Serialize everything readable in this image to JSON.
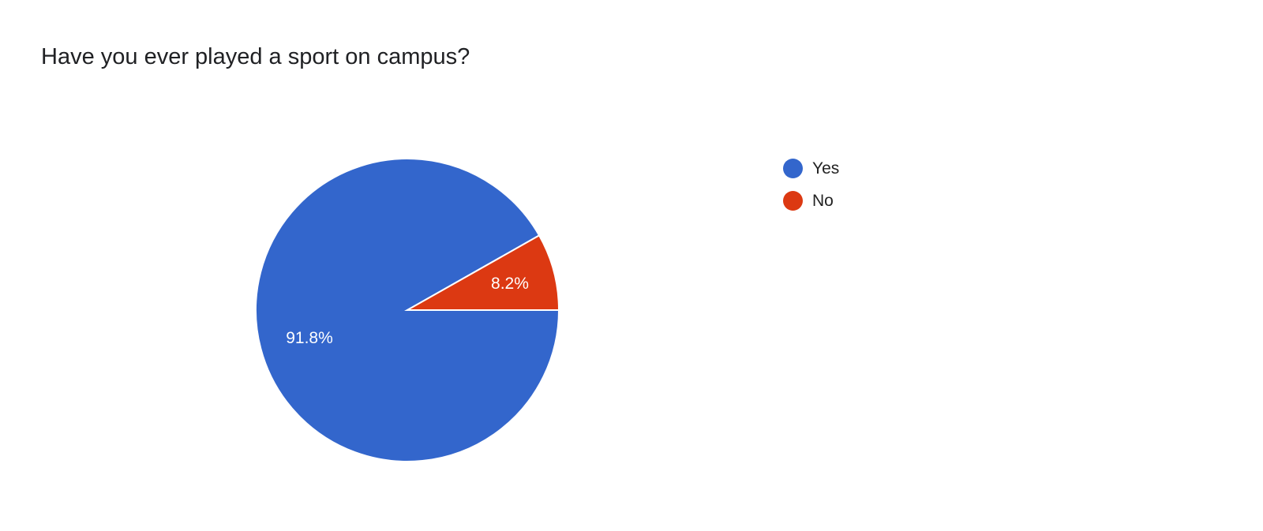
{
  "chart_data": {
    "type": "pie",
    "title": "Have you ever played a sport on campus?",
    "legend_position": "right",
    "slices": [
      {
        "label": "Yes",
        "value": 91.8,
        "data_label": "91.8%",
        "color": "#3366cc"
      },
      {
        "label": "No",
        "value": 8.2,
        "data_label": "8.2%",
        "color": "#dc3912"
      }
    ]
  }
}
